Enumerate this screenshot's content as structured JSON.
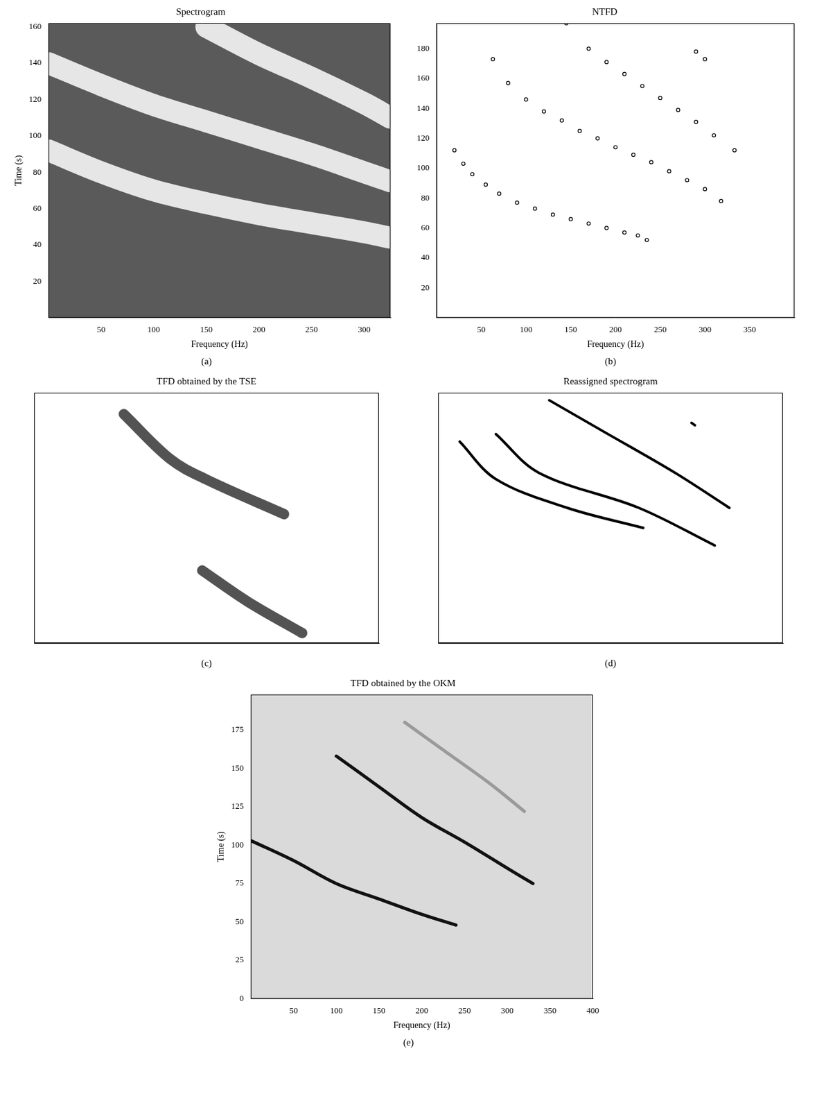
{
  "chart_data": [
    {
      "type": "line",
      "title": "Spectrogram",
      "caption": "(a)",
      "x_label": "Frequency (Hz)",
      "y_label": "Time (s)",
      "xlim": [
        0,
        325
      ],
      "ylim": [
        0,
        162
      ],
      "xticks": [
        50,
        100,
        150,
        200,
        250,
        300
      ],
      "yticks": [
        20,
        40,
        60,
        80,
        100,
        120,
        140,
        160
      ],
      "series": [
        {
          "color": "#ffffff",
          "line_style": "solid",
          "marker": "none",
          "x": [
            0,
            50,
            100,
            150,
            200,
            250,
            300,
            325
          ],
          "values": [
            92,
            80,
            70,
            63,
            57,
            52,
            47,
            44
          ]
        },
        {
          "color": "#ffffff",
          "line_style": "solid",
          "marker": "none",
          "x": [
            0,
            50,
            100,
            150,
            200,
            250,
            300,
            325
          ],
          "values": [
            140,
            128,
            117,
            108,
            99,
            90,
            80,
            75
          ]
        },
        {
          "color": "#ffffff",
          "line_style": "solid",
          "marker": "none",
          "x": [
            150,
            200,
            250,
            300,
            325
          ],
          "values": [
            160,
            145,
            132,
            118,
            110
          ]
        }
      ]
    },
    {
      "type": "line",
      "title": "NTFD",
      "caption": "(b)",
      "x_label": "Frequency (Hz)",
      "xlim": [
        0,
        400
      ],
      "ylim": [
        0,
        197
      ],
      "xticks": [
        50,
        100,
        150,
        200,
        250,
        300,
        350
      ],
      "yticks": [
        20,
        40,
        60,
        80,
        100,
        120,
        140,
        160,
        180
      ],
      "series": [
        {
          "color": "#000000",
          "line_style": "none",
          "marker": "circle",
          "x": [
            20,
            30,
            40,
            55,
            70,
            90,
            110,
            130,
            150,
            170,
            190,
            210,
            225,
            235
          ],
          "values": [
            112,
            103,
            96,
            89,
            83,
            77,
            73,
            69,
            66,
            63,
            60,
            57,
            55,
            52
          ]
        },
        {
          "color": "#000000",
          "line_style": "none",
          "marker": "circle",
          "x": [
            63,
            80,
            100,
            120,
            140,
            160,
            180,
            200,
            220,
            240,
            260,
            280,
            300,
            318
          ],
          "values": [
            173,
            157,
            146,
            138,
            132,
            125,
            120,
            114,
            109,
            104,
            98,
            92,
            86,
            78
          ]
        },
        {
          "color": "#000000",
          "line_style": "none",
          "marker": "circle",
          "x": [
            145,
            170,
            190,
            210,
            230,
            250,
            270,
            290,
            310,
            333
          ],
          "values": [
            197,
            180,
            171,
            163,
            155,
            147,
            139,
            131,
            122,
            112
          ]
        },
        {
          "color": "#000000",
          "line_style": "none",
          "marker": "circle",
          "x": [
            290,
            300
          ],
          "values": [
            178,
            173
          ]
        }
      ]
    },
    {
      "type": "line",
      "title": "TFD obtained by the TSE",
      "caption": "(c)",
      "tick_labels": false,
      "xlim": [
        0,
        400
      ],
      "ylim": [
        0,
        200
      ],
      "series": [
        {
          "color": "#1a1a1a",
          "line_style": "solid",
          "marker": "none",
          "x": [
            104,
            158,
            199,
            290
          ],
          "values": [
            183,
            147,
            131,
            103
          ]
        },
        {
          "color": "#1a1a1a",
          "line_style": "solid",
          "marker": "none",
          "x": [
            195,
            248,
            311
          ],
          "values": [
            58,
            33,
            8
          ]
        }
      ]
    },
    {
      "type": "line",
      "title": "Reassigned spectrogram",
      "caption": "(d)",
      "tick_labels": false,
      "xlim": [
        0,
        400
      ],
      "ylim": [
        0,
        200
      ],
      "series": [
        {
          "color": "#000000",
          "line_style": "solid",
          "marker": "none",
          "x": [
            25,
            67,
            150,
            238
          ],
          "values": [
            161,
            131,
            108,
            92
          ]
        },
        {
          "color": "#000000",
          "line_style": "solid",
          "marker": "none",
          "x": [
            67,
            117,
            233,
            321
          ],
          "values": [
            167,
            136,
            108,
            78
          ]
        },
        {
          "color": "#000000",
          "line_style": "solid",
          "marker": "none",
          "x": [
            129,
            192,
            275,
            338
          ],
          "values": [
            194,
            169,
            136,
            108
          ]
        },
        {
          "color": "#000000",
          "line_style": "solid",
          "marker": "none",
          "x": [
            294,
            298
          ],
          "values": [
            176,
            174
          ]
        }
      ]
    },
    {
      "type": "line",
      "title": "TFD obtained by the OKM",
      "caption": "(e)",
      "x_label": "Frequency (Hz)",
      "y_label": "Time (s)",
      "xlim": [
        0,
        400
      ],
      "ylim": [
        0,
        198
      ],
      "xticks": [
        50,
        100,
        150,
        200,
        250,
        300,
        350,
        400
      ],
      "yticks": [
        0,
        25,
        50,
        75,
        100,
        125,
        150,
        175
      ],
      "series": [
        {
          "color": "#111111",
          "line_style": "solid",
          "marker": "none",
          "x": [
            0,
            50,
            100,
            150,
            200,
            240
          ],
          "values": [
            103,
            90,
            75,
            65,
            55,
            48
          ]
        },
        {
          "color": "#111111",
          "line_style": "solid",
          "marker": "none",
          "x": [
            100,
            150,
            200,
            250,
            300,
            330
          ],
          "values": [
            158,
            138,
            118,
            102,
            85,
            75
          ]
        },
        {
          "color": "#9a9a9a",
          "line_style": "solid",
          "marker": "none",
          "x": [
            180,
            230,
            280,
            320
          ],
          "values": [
            180,
            160,
            140,
            122
          ]
        }
      ]
    }
  ]
}
